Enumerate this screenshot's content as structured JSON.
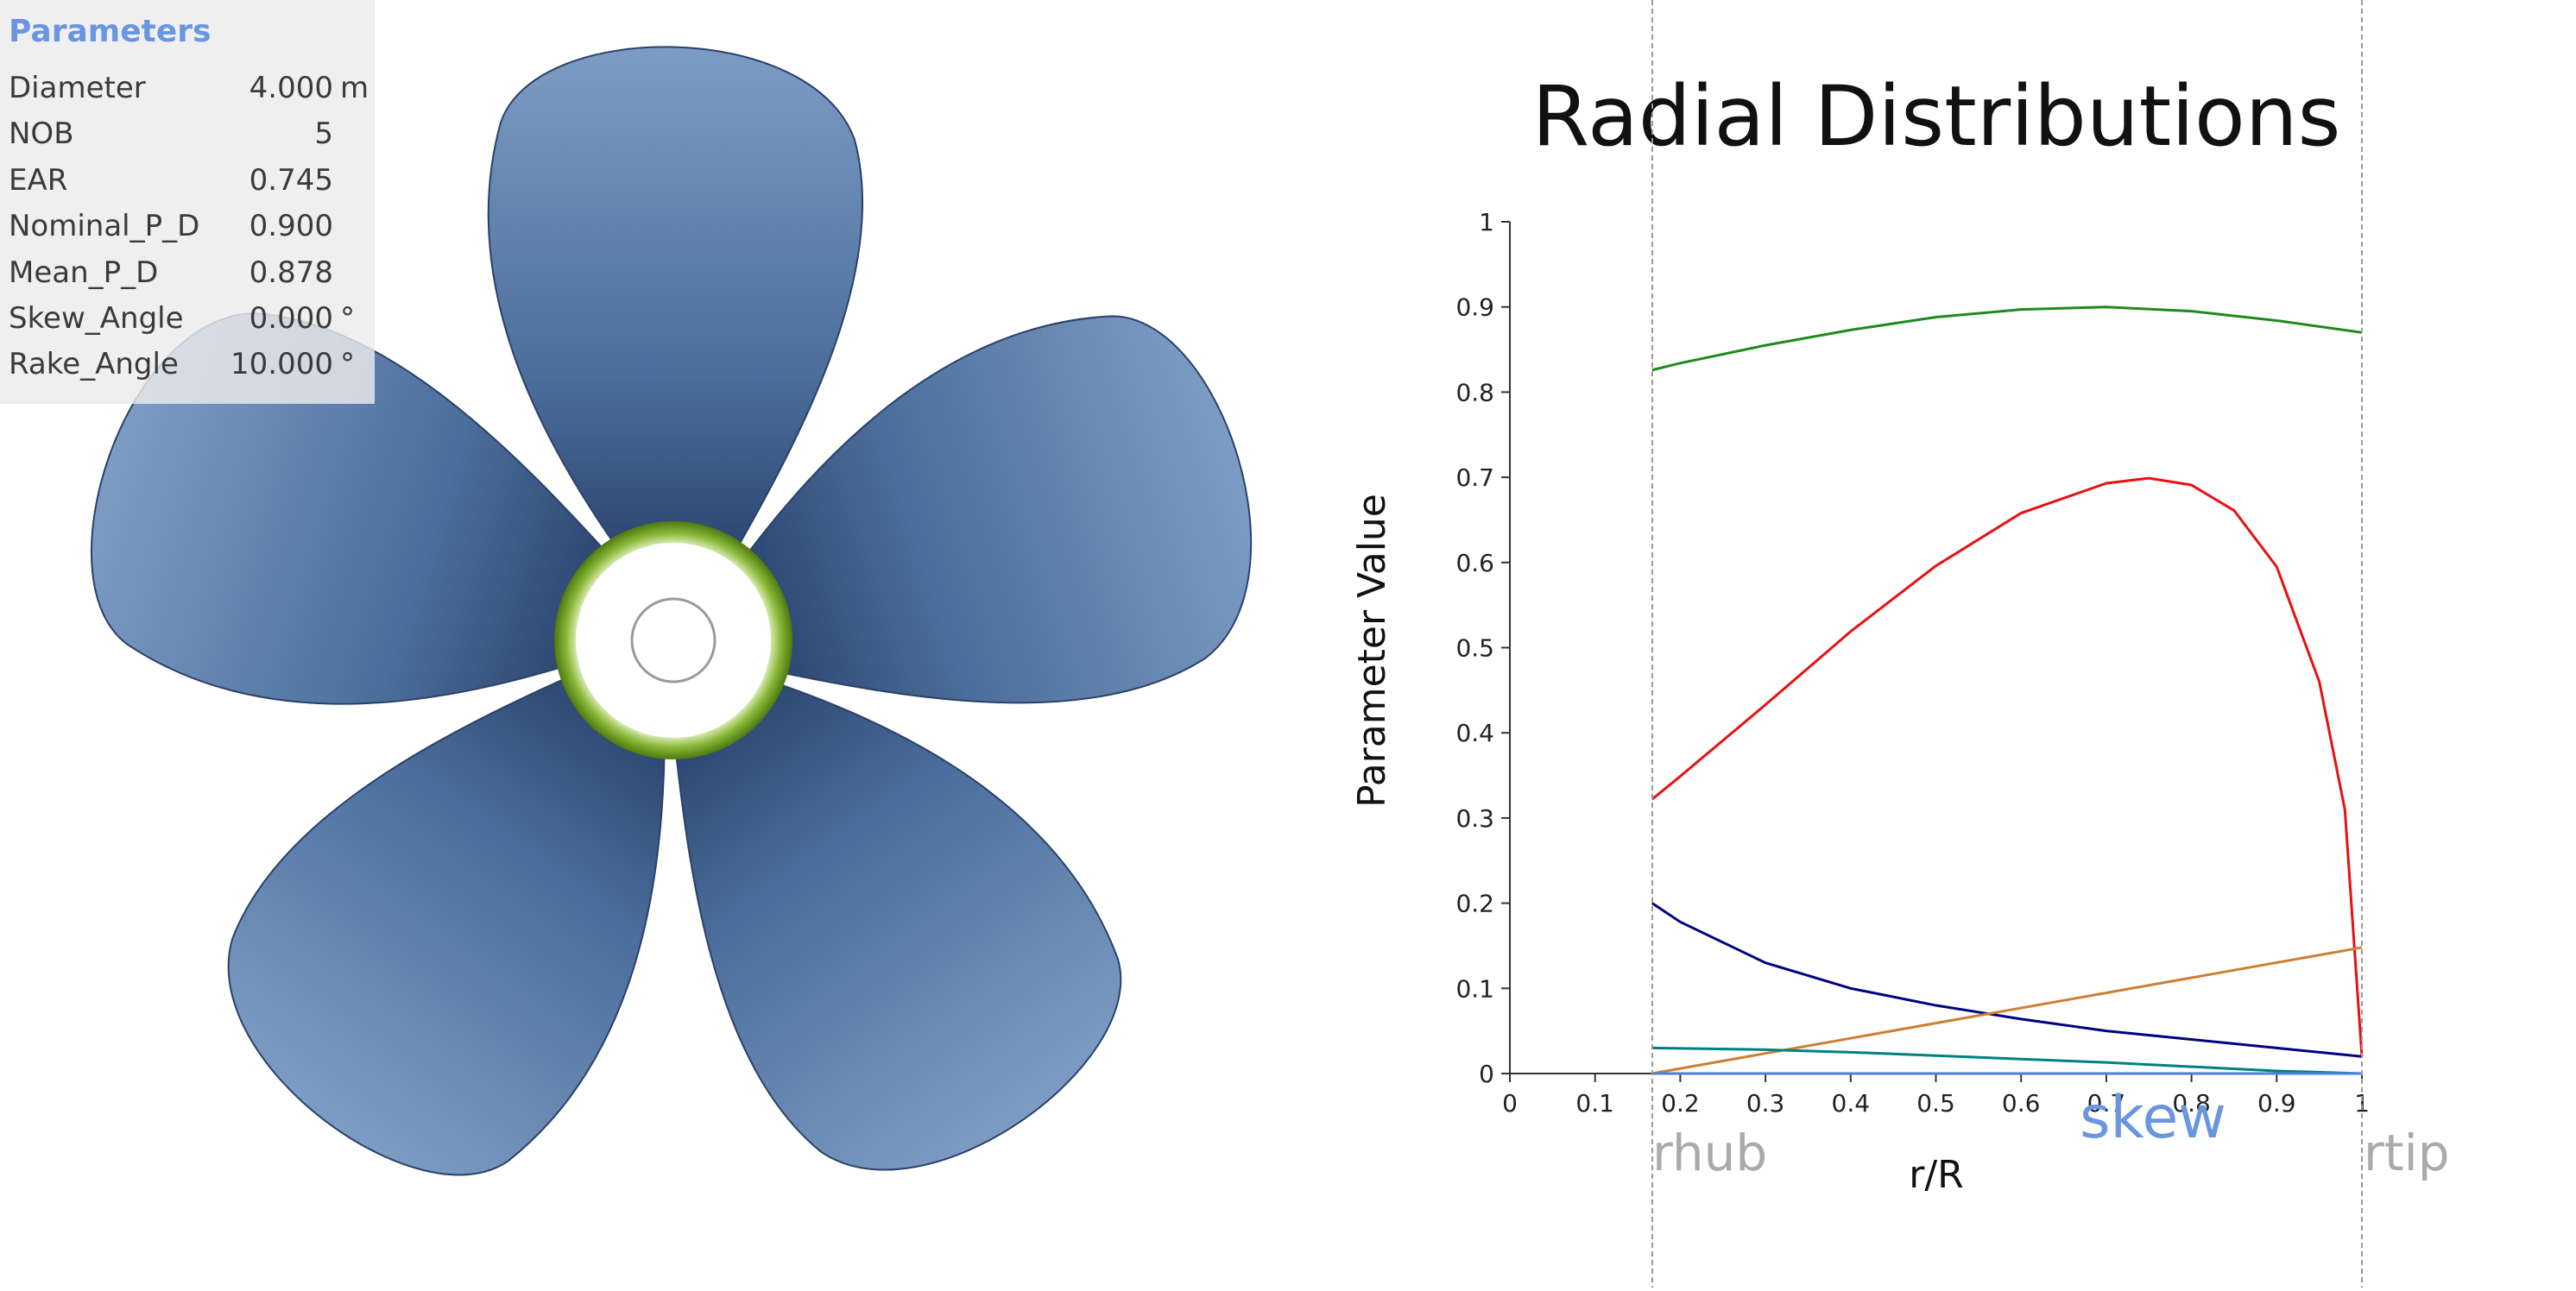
{
  "parameters": {
    "title": "Parameters",
    "rows": [
      {
        "name": "Diameter",
        "value": "4.000",
        "unit": "m"
      },
      {
        "name": "NOB",
        "value": "5",
        "unit": ""
      },
      {
        "name": "EAR",
        "value": "0.745",
        "unit": ""
      },
      {
        "name": "Nominal_P_D",
        "value": "0.900",
        "unit": ""
      },
      {
        "name": "Mean_P_D",
        "value": "0.878",
        "unit": ""
      },
      {
        "name": "Skew_Angle",
        "value": "0.000",
        "unit": "°"
      },
      {
        "name": "Rake_Angle",
        "value": "10.000",
        "unit": "°"
      }
    ]
  },
  "propeller": {
    "blade_count": 5,
    "blade_color": "#5b7fab",
    "hub_ring_color": "#5c8a12"
  },
  "markers": {
    "rhub_label": "rhub",
    "rtip_label": "rtip",
    "skew_label": "skew",
    "skew_color": "#6a95e0"
  },
  "chart_data": {
    "type": "line",
    "title": "Radial Distributions",
    "xlabel": "r/R",
    "ylabel": "Parameter Value",
    "xlim": [
      0,
      1
    ],
    "ylim": [
      0,
      1
    ],
    "xticks": [
      "0",
      "0.1",
      "0.2",
      "0.3",
      "0.4",
      "0.5",
      "0.6",
      "0.7",
      "0.8",
      "0.9",
      "1"
    ],
    "yticks": [
      "0",
      "0.1",
      "0.2",
      "0.3",
      "0.4",
      "0.5",
      "0.6",
      "0.7",
      "0.8",
      "0.9",
      "1"
    ],
    "grid": false,
    "series": [
      {
        "color": "#1e8a1e",
        "x": [
          0.167,
          0.2,
          0.3,
          0.4,
          0.5,
          0.6,
          0.7,
          0.8,
          0.9,
          1.0
        ],
        "y": [
          0.826,
          0.834,
          0.855,
          0.873,
          0.888,
          0.897,
          0.9,
          0.895,
          0.884,
          0.87
        ]
      },
      {
        "color": "#e81010",
        "x": [
          0.167,
          0.2,
          0.3,
          0.4,
          0.5,
          0.6,
          0.7,
          0.75,
          0.8,
          0.85,
          0.9,
          0.95,
          0.98,
          1.0
        ],
        "y": [
          0.322,
          0.349,
          0.433,
          0.519,
          0.596,
          0.658,
          0.693,
          0.699,
          0.691,
          0.661,
          0.595,
          0.46,
          0.31,
          0.02
        ]
      },
      {
        "color": "#000080",
        "x": [
          0.167,
          0.2,
          0.3,
          0.4,
          0.5,
          0.6,
          0.7,
          0.8,
          0.9,
          1.0
        ],
        "y": [
          0.2,
          0.178,
          0.13,
          0.1,
          0.08,
          0.064,
          0.05,
          0.04,
          0.03,
          0.02
        ]
      },
      {
        "color": "#cd7f32",
        "x": [
          0.167,
          1.0
        ],
        "y": [
          0.0,
          0.148
        ]
      },
      {
        "color": "#008080",
        "x": [
          0.167,
          0.3,
          0.4,
          0.5,
          0.6,
          0.7,
          0.8,
          0.9,
          1.0
        ],
        "y": [
          0.03,
          0.028,
          0.025,
          0.021,
          0.017,
          0.013,
          0.008,
          0.003,
          0.0
        ]
      },
      {
        "color": "#4a7fe0",
        "x": [
          0.167,
          0.5,
          0.7,
          1.0
        ],
        "y": [
          0.0,
          0.0,
          0.0,
          0.0
        ]
      }
    ]
  }
}
